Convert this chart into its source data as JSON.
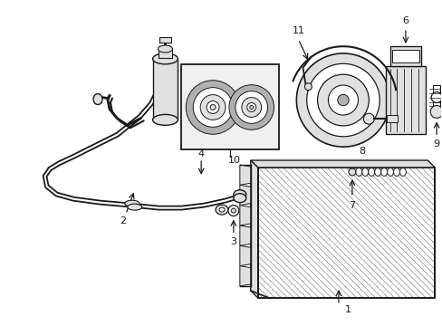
{
  "bg_color": "#ffffff",
  "line_color": "#1a1a1a",
  "gray_fill": "#c8c8c8",
  "light_gray": "#e0e0e0",
  "mid_gray": "#b0b0b0",
  "fig_width": 4.89,
  "fig_height": 3.6,
  "dpi": 100
}
